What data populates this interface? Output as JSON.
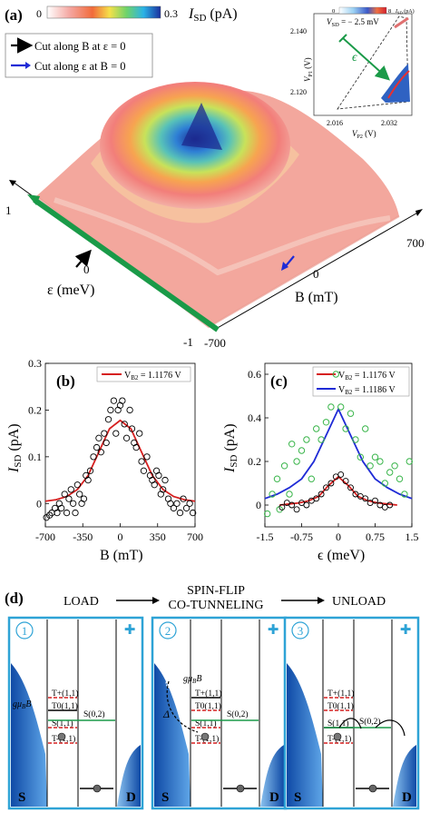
{
  "panel_a": {
    "label": "(a)",
    "colorbar": {
      "min": "0",
      "max": "0.3",
      "quantity": "I",
      "sub": "SD",
      "unit": " (pA)"
    },
    "legend": [
      {
        "text": "Cut along B at ε = 0",
        "color": "#000000"
      },
      {
        "text": "Cut along ε at B = 0",
        "color": "#1f2bd6"
      }
    ],
    "axis_eps": {
      "label": "ε (meV)",
      "ticks": [
        "1",
        "0",
        "-1"
      ]
    },
    "axis_B": {
      "label": "B (mT)",
      "ticks": [
        "700",
        "0",
        "-700"
      ]
    },
    "inset": {
      "vsd": "V",
      "vsd_sub": "SD",
      "vsd_val": " = − 2.5 mV",
      "cb_min": "0",
      "cb_max": "8",
      "cb_unit": "I",
      "cb_unit_sub": "SD",
      "cb_unit_rest": " (pA)",
      "eps": "ϵ",
      "yticks": [
        "2.140",
        "2.120"
      ],
      "xticks": [
        "2.016",
        "2.032"
      ],
      "ylabel": "V",
      "ylabel_sub": "P1",
      "ylabel_rest": " (V)",
      "xlabel": "V",
      "xlabel_sub": "P2",
      "xlabel_rest": " (V)"
    }
  },
  "chart_data": [
    {
      "type": "scatter",
      "label": "(b)",
      "xlabel": "B (mT)",
      "ylabel": "I",
      "ylabel_sub": "SD",
      "ylabel_rest": " (pA)",
      "xlim": [
        -700,
        700
      ],
      "ylim": [
        -0.05,
        0.3
      ],
      "xticks": [
        -700,
        -350,
        0,
        350,
        700
      ],
      "yticks": [
        0,
        0.1,
        0.2,
        0.3
      ],
      "legend": [
        {
          "name": "V",
          "sub": "B2",
          "rest": " = 1.1176 V",
          "color": "#d62020"
        }
      ],
      "fit": {
        "color": "#d62020",
        "x": [
          -700,
          -600,
          -500,
          -400,
          -300,
          -200,
          -100,
          0,
          100,
          200,
          300,
          400,
          500,
          600,
          700
        ],
        "y": [
          0.005,
          0.008,
          0.015,
          0.03,
          0.06,
          0.11,
          0.16,
          0.178,
          0.16,
          0.11,
          0.06,
          0.03,
          0.015,
          0.008,
          0.005
        ]
      },
      "points": {
        "x": [
          -690,
          -660,
          -640,
          -610,
          -590,
          -570,
          -550,
          -520,
          -500,
          -480,
          -460,
          -440,
          -420,
          -400,
          -380,
          -360,
          -340,
          -320,
          -300,
          -280,
          -250,
          -220,
          -200,
          -180,
          -150,
          -130,
          -110,
          -90,
          -60,
          -40,
          -20,
          0,
          20,
          40,
          60,
          90,
          110,
          130,
          150,
          180,
          200,
          220,
          250,
          280,
          300,
          320,
          340,
          360,
          380,
          400,
          420,
          450,
          470,
          500,
          530,
          560,
          590,
          620,
          650,
          680
        ],
        "y": [
          -0.03,
          -0.025,
          -0.02,
          -0.01,
          -0.02,
          0.0,
          -0.01,
          0.02,
          -0.02,
          0.01,
          0.03,
          0.0,
          -0.02,
          0.04,
          0.02,
          0.0,
          0.01,
          0.06,
          0.05,
          0.07,
          0.1,
          0.12,
          0.14,
          0.11,
          0.15,
          0.13,
          0.18,
          0.2,
          0.22,
          0.15,
          0.2,
          0.21,
          0.22,
          0.17,
          0.14,
          0.2,
          0.16,
          0.13,
          0.12,
          0.15,
          0.09,
          0.07,
          0.1,
          0.06,
          0.05,
          0.04,
          0.07,
          0.06,
          0.02,
          0.03,
          0.05,
          0.01,
          0.0,
          -0.01,
          0.0,
          -0.02,
          0.01,
          -0.01,
          0.0,
          -0.02
        ]
      }
    },
    {
      "type": "scatter",
      "label": "(c)",
      "xlabel": "ϵ (meV)",
      "xlim": [
        -1.5,
        1.5
      ],
      "ylim": [
        -0.1,
        0.65
      ],
      "xticks": [
        -1.5,
        -0.75,
        0,
        0.75,
        1.5
      ],
      "xtick_labels": [
        "-1.5",
        "-0.75",
        "0",
        "0.75",
        "1.5"
      ],
      "yticks": [
        0,
        0.2,
        0.4,
        0.6
      ],
      "legend": [
        {
          "name": "V",
          "sub": "B2",
          "rest": " = 1.1176 V",
          "color": "#d62020"
        },
        {
          "name": "V",
          "sub": "B2",
          "rest": " = 1.1186 V",
          "color": "#1f2bd6"
        }
      ],
      "fits": [
        {
          "color": "#d62020",
          "x": [
            -1.2,
            -1.0,
            -0.8,
            -0.6,
            -0.4,
            -0.2,
            0,
            0.2,
            0.4,
            0.6,
            0.8,
            1.0,
            1.2
          ],
          "y": [
            0.0,
            0.005,
            0.01,
            0.02,
            0.04,
            0.09,
            0.13,
            0.09,
            0.04,
            0.02,
            0.01,
            0.005,
            0.0
          ]
        },
        {
          "color": "#1f2bd6",
          "x": [
            -1.5,
            -1.25,
            -1.0,
            -0.75,
            -0.5,
            -0.25,
            0,
            0.25,
            0.5,
            0.75,
            1.0,
            1.25,
            1.5
          ],
          "y": [
            0.03,
            0.05,
            0.08,
            0.12,
            0.2,
            0.32,
            0.44,
            0.32,
            0.2,
            0.12,
            0.08,
            0.05,
            0.03
          ]
        }
      ],
      "points_red": {
        "x": [
          -1.15,
          -1.05,
          -0.95,
          -0.85,
          -0.75,
          -0.65,
          -0.55,
          -0.45,
          -0.35,
          -0.25,
          -0.15,
          -0.05,
          0.05,
          0.15,
          0.25,
          0.35,
          0.45,
          0.55,
          0.65,
          0.75,
          0.85,
          0.95,
          1.05
        ],
        "y": [
          -0.01,
          0.01,
          0.0,
          -0.02,
          0.01,
          0.0,
          0.02,
          0.03,
          0.05,
          0.08,
          0.1,
          0.13,
          0.14,
          0.11,
          0.08,
          0.05,
          0.04,
          0.03,
          0.01,
          0.02,
          0.0,
          -0.01,
          0.0
        ]
      },
      "points_green": {
        "x": [
          -1.45,
          -1.35,
          -1.25,
          -1.2,
          -1.1,
          -1.0,
          -0.95,
          -0.85,
          -0.75,
          -0.65,
          -0.55,
          -0.45,
          -0.35,
          -0.25,
          -0.15,
          -0.05,
          0.05,
          0.15,
          0.25,
          0.35,
          0.45,
          0.55,
          0.65,
          0.75,
          0.85,
          0.95,
          1.05,
          1.15,
          1.25,
          1.35,
          1.45
        ],
        "y": [
          -0.04,
          0.05,
          0.12,
          -0.02,
          0.18,
          0.05,
          0.28,
          0.2,
          0.25,
          0.3,
          0.12,
          0.35,
          0.3,
          0.38,
          0.45,
          0.6,
          0.45,
          0.35,
          0.42,
          0.3,
          0.22,
          0.35,
          0.18,
          0.22,
          0.2,
          0.1,
          0.15,
          0.18,
          0.12,
          0.05,
          0.2
        ]
      }
    }
  ],
  "panel_d": {
    "label": "(d)",
    "steps": {
      "load": "LOAD",
      "spinflip_1": "SPIN-FLIP",
      "spinflip_2": "CO-TUNNELING",
      "unload": "UNLOAD"
    },
    "boxes": [
      {
        "num": "1",
        "plus": "✚",
        "S": "S",
        "D": "D",
        "gub": "gμ",
        "gub_sub": "B",
        "gub_rest": "B",
        "levels": [
          "T+(1,1)",
          "T0(1,1)",
          "S(1,1)",
          "T-(1,1)"
        ],
        "s02": "S(0,2)"
      },
      {
        "num": "2",
        "plus": "✚",
        "S": "S",
        "D": "D",
        "gub": "gμ",
        "gub_sub": "B",
        "gub_rest": "B",
        "delta": "Δ",
        "levels": [
          "T+(1,1)",
          "T0(1,1)",
          "S(1,1)",
          "T-(1,1)"
        ],
        "s02": "S(0,2)"
      },
      {
        "num": "3",
        "plus": "✚",
        "S": "S",
        "D": "D",
        "levels": [
          "T+(1,1)",
          "T0(1,1)",
          "S(1,1)",
          "T-(1,1)"
        ],
        "s02": "S(0,2)"
      }
    ]
  }
}
